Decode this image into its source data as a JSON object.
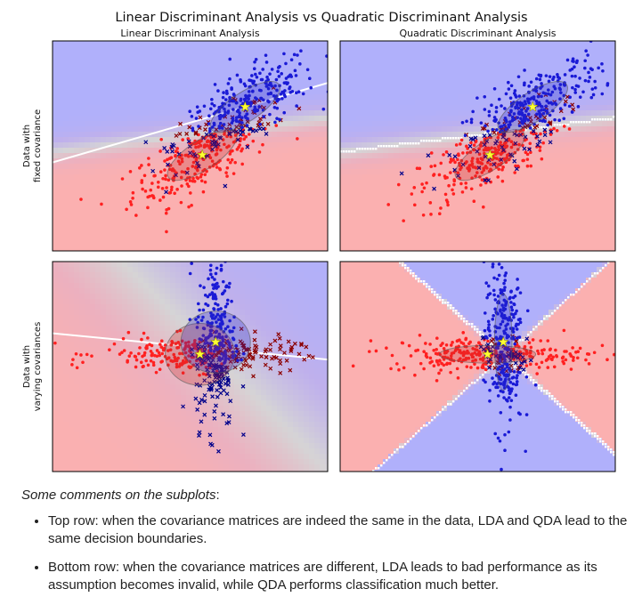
{
  "figure_title": "Linear Discriminant Analysis vs Quadratic Discriminant Analysis",
  "colors": {
    "class0": "#ff2020",
    "class1": "#1a1ad6",
    "misclass0": "#8b0000",
    "misclass1": "#00008b",
    "region0": "#fbb0b0",
    "region1": "#b0b0fb",
    "boundary": "#ffffff",
    "mean_star": "#ffff33"
  },
  "chart_data": [
    {
      "type": "scatter",
      "title": "Linear Discriminant Analysis",
      "ylabel": "Data with\nfixed covariance",
      "xlim": [
        -4,
        5
      ],
      "ylim": [
        -3,
        4
      ],
      "series": [],
      "means": [
        [
          0.9,
          0.2
        ],
        [
          2.3,
          1.8
        ]
      ],
      "classes": [
        {
          "mean": [
            0.9,
            0.2
          ],
          "cov": [
            [
              1.3,
              0.7
            ],
            [
              0.7,
              0.7
            ]
          ],
          "n": 300
        },
        {
          "mean": [
            2.3,
            1.8
          ],
          "cov": [
            [
              1.3,
              0.7
            ],
            [
              0.7,
              0.7
            ]
          ],
          "n": 300
        }
      ],
      "boundary": "linear",
      "boundary_line": [
        [
          -4,
          -0.05
        ],
        [
          5,
          2.6
        ]
      ],
      "ellipses": true
    },
    {
      "type": "scatter",
      "title": "Quadratic Discriminant Analysis",
      "ylabel": "",
      "xlim": [
        -4,
        5
      ],
      "ylim": [
        -3,
        4
      ],
      "series": [],
      "means": [
        [
          0.9,
          0.2
        ],
        [
          2.3,
          1.8
        ]
      ],
      "classes": [
        {
          "mean": [
            0.9,
            0.2
          ],
          "cov": [
            [
              1.3,
              0.7
            ],
            [
              0.7,
              0.7
            ]
          ],
          "n": 300
        },
        {
          "mean": [
            2.3,
            1.8
          ],
          "cov": [
            [
              1.3,
              0.7
            ],
            [
              0.7,
              0.7
            ]
          ],
          "n": 300
        }
      ],
      "boundary": "quadratic",
      "ellipses": true
    },
    {
      "type": "scatter",
      "title": "",
      "ylabel": "Data with\nvarying covariances",
      "xlim": [
        -8,
        6
      ],
      "ylim": [
        -7,
        5
      ],
      "series": [],
      "means": [
        [
          -0.5,
          -0.3
        ],
        [
          0.3,
          0.4
        ]
      ],
      "classes": [
        {
          "mean": [
            -0.5,
            -0.3
          ],
          "cov": [
            [
              6.0,
              0.0
            ],
            [
              0.0,
              0.25
            ]
          ],
          "n": 300
        },
        {
          "mean": [
            0.3,
            0.4
          ],
          "cov": [
            [
              0.25,
              0.0
            ],
            [
              0.0,
              6.0
            ]
          ],
          "n": 300
        }
      ],
      "boundary": "linear",
      "boundary_line": [
        [
          -8,
          0.9
        ],
        [
          6,
          -0.6
        ]
      ],
      "ellipses": true
    },
    {
      "type": "scatter",
      "title": "",
      "ylabel": "",
      "xlim": [
        -8,
        6
      ],
      "ylim": [
        -7,
        5
      ],
      "series": [],
      "means": [
        [
          -0.5,
          -0.3
        ],
        [
          0.3,
          0.4
        ]
      ],
      "classes": [
        {
          "mean": [
            -0.5,
            -0.3
          ],
          "cov": [
            [
              6.0,
              0.0
            ],
            [
              0.0,
              0.25
            ]
          ],
          "n": 300
        },
        {
          "mean": [
            0.3,
            0.4
          ],
          "cov": [
            [
              0.25,
              0.0
            ],
            [
              0.0,
              6.0
            ]
          ],
          "n": 300
        }
      ],
      "boundary": "quadratic",
      "ellipses": true
    }
  ],
  "notes": {
    "intro_prefix": "Some comments on the subplots",
    "intro_suffix": ":",
    "bullets": [
      "Top row: when the covariance matrices are indeed the same in the data, LDA and QDA lead to the same decision boundaries.",
      "Bottom row: when the covariance matrices are different, LDA leads to bad performance as its assumption becomes invalid, while QDA performs classification much better."
    ]
  }
}
